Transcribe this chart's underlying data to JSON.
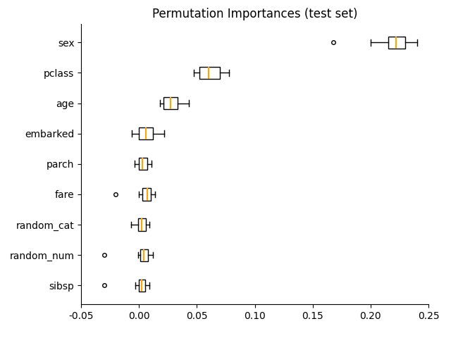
{
  "title": "Permutation Importances (test set)",
  "features": [
    "sex",
    "pclass",
    "age",
    "embarked",
    "parch",
    "fare",
    "random_cat",
    "random_num",
    "sibsp"
  ],
  "box_stats": {
    "sex": {
      "whislo": 0.2,
      "q1": 0.215,
      "med": 0.222,
      "q3": 0.23,
      "whishi": 0.24,
      "fliers": [
        0.168
      ]
    },
    "pclass": {
      "whislo": 0.047,
      "q1": 0.052,
      "med": 0.06,
      "q3": 0.07,
      "whishi": 0.078,
      "fliers": []
    },
    "age": {
      "whislo": 0.018,
      "q1": 0.021,
      "med": 0.027,
      "q3": 0.033,
      "whishi": 0.043,
      "fliers": []
    },
    "embarked": {
      "whislo": -0.006,
      "q1": 0.0,
      "med": 0.006,
      "q3": 0.012,
      "whishi": 0.022,
      "fliers": []
    },
    "parch": {
      "whislo": -0.004,
      "q1": 0.0,
      "med": 0.003,
      "q3": 0.007,
      "whishi": 0.011,
      "fliers": []
    },
    "fare": {
      "whislo": 0.0,
      "q1": 0.003,
      "med": 0.007,
      "q3": 0.01,
      "whishi": 0.014,
      "fliers": [
        -0.02
      ]
    },
    "random_cat": {
      "whislo": -0.007,
      "q1": -0.001,
      "med": 0.002,
      "q3": 0.006,
      "whishi": 0.009,
      "fliers": []
    },
    "random_num": {
      "whislo": -0.001,
      "q1": 0.001,
      "med": 0.004,
      "q3": 0.008,
      "whishi": 0.012,
      "fliers": [
        -0.03
      ]
    },
    "sibsp": {
      "whislo": -0.003,
      "q1": 0.0,
      "med": 0.002,
      "q3": 0.005,
      "whishi": 0.009,
      "fliers": [
        -0.03
      ]
    }
  },
  "xlim": [
    -0.05,
    0.25
  ],
  "xticks": [
    -0.05,
    0.0,
    0.05,
    0.1,
    0.15,
    0.2,
    0.25
  ],
  "xticklabels": [
    "-0.05",
    "0.00",
    "0.05",
    "0.10",
    "0.15",
    "0.20",
    "0.25"
  ],
  "median_color": "orange",
  "box_facecolor": "white",
  "box_edgecolor": "black",
  "flier_marker": "o",
  "title_fontsize": 12,
  "figsize": [
    6.4,
    4.8
  ],
  "dpi": 100,
  "box_width": 0.4,
  "linewidth": 1.0,
  "median_linewidth": 1.5
}
